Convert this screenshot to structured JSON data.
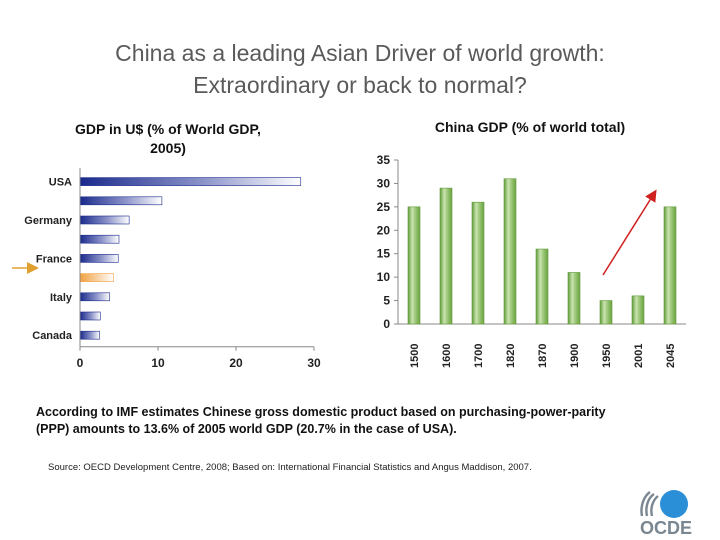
{
  "slide": {
    "title_line1": "China as a leading Asian Driver of world growth:",
    "title_line2": "Extraordinary or back to normal?",
    "caption_line1": "According to IMF estimates Chinese gross domestic product based on purchasing-power-parity",
    "caption_line2": "(PPP)  amounts to 13.6% of 2005 world GDP (20.7% in the case of USA).",
    "source": "Source: OECD Development Centre, 2008; Based on: International Financial Statistics and Angus Maddison, 2007.",
    "logo_text": "OCDE"
  },
  "chart_data": [
    {
      "type": "bar",
      "orientation": "horizontal",
      "title_line1": "GDP in U$ (% of World GDP,",
      "title_line2": "2005)",
      "labeled_rows": [
        "USA",
        "Germany",
        "France",
        "Italy",
        "Canada"
      ],
      "row_labels": [
        "USA",
        "",
        "Germany",
        "",
        "France",
        "",
        "Italy",
        "",
        "Canada"
      ],
      "values": [
        28.3,
        10.5,
        6.3,
        5.0,
        4.9,
        4.3,
        3.8,
        2.6,
        2.5
      ],
      "highlight_index": 5,
      "xlim": [
        0,
        30
      ],
      "xticks": [
        "0",
        "10",
        "20",
        "30"
      ],
      "bar_color": "#1a2a8c",
      "highlight_color": "#f0a040"
    },
    {
      "type": "bar",
      "title": "China GDP (% of world total)",
      "categories": [
        "1500",
        "1600",
        "1700",
        "1820",
        "1870",
        "1900",
        "1950",
        "2001",
        "2045"
      ],
      "values": [
        25,
        29,
        26,
        31,
        16,
        11,
        5,
        6,
        25
      ],
      "ylim": [
        0,
        35
      ],
      "yticks": [
        "0",
        "5",
        "10",
        "15",
        "20",
        "25",
        "30",
        "35"
      ],
      "bar_color": "#8fbf68",
      "trend_arrow_color": "#d02020"
    }
  ]
}
